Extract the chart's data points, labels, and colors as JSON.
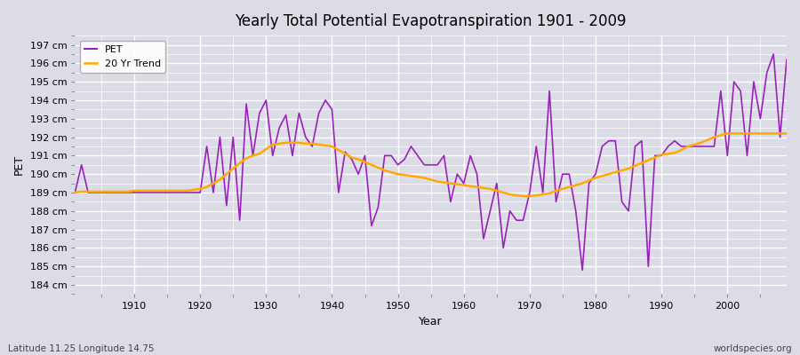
{
  "title": "Yearly Total Potential Evapotranspiration 1901 - 2009",
  "xlabel": "Year",
  "ylabel": "PET",
  "subtitle_left": "Latitude 11.25 Longitude 14.75",
  "subtitle_right": "worldspecies.org",
  "ylim": [
    183.5,
    197.5
  ],
  "yticks": [
    184,
    185,
    186,
    187,
    188,
    189,
    190,
    191,
    192,
    193,
    194,
    195,
    196,
    197
  ],
  "xlim": [
    1901,
    2009
  ],
  "xticks": [
    1910,
    1920,
    1930,
    1940,
    1950,
    1960,
    1970,
    1980,
    1990,
    2000
  ],
  "bg_color": "#dcdce6",
  "grid_color": "#ffffff",
  "pet_color": "#9922bb",
  "trend_color": "#ffaa00",
  "pet_linewidth": 1.2,
  "trend_linewidth": 1.8,
  "years": [
    1901,
    1902,
    1903,
    1904,
    1905,
    1906,
    1907,
    1908,
    1909,
    1910,
    1911,
    1912,
    1913,
    1914,
    1915,
    1916,
    1917,
    1918,
    1919,
    1920,
    1921,
    1922,
    1923,
    1924,
    1925,
    1926,
    1927,
    1928,
    1929,
    1930,
    1931,
    1932,
    1933,
    1934,
    1935,
    1936,
    1937,
    1938,
    1939,
    1940,
    1941,
    1942,
    1943,
    1944,
    1945,
    1946,
    1947,
    1948,
    1949,
    1950,
    1951,
    1952,
    1953,
    1954,
    1955,
    1956,
    1957,
    1958,
    1959,
    1960,
    1961,
    1962,
    1963,
    1964,
    1965,
    1966,
    1967,
    1968,
    1969,
    1970,
    1971,
    1972,
    1973,
    1974,
    1975,
    1976,
    1977,
    1978,
    1979,
    1980,
    1981,
    1982,
    1983,
    1984,
    1985,
    1986,
    1987,
    1988,
    1989,
    1990,
    1991,
    1992,
    1993,
    1994,
    1995,
    1996,
    1997,
    1998,
    1999,
    2000,
    2001,
    2002,
    2003,
    2004,
    2005,
    2006,
    2007,
    2008,
    2009
  ],
  "pet": [
    189.0,
    190.5,
    189.0,
    189.0,
    189.0,
    189.0,
    189.0,
    189.0,
    189.0,
    189.0,
    189.0,
    189.0,
    189.0,
    189.0,
    189.0,
    189.0,
    189.0,
    189.0,
    189.0,
    189.0,
    191.5,
    189.0,
    192.0,
    188.3,
    192.0,
    187.5,
    193.8,
    191.0,
    193.3,
    194.0,
    191.0,
    192.5,
    193.2,
    191.0,
    193.3,
    192.0,
    191.5,
    193.3,
    194.0,
    193.5,
    189.0,
    191.2,
    190.8,
    190.0,
    191.0,
    187.2,
    188.2,
    191.0,
    191.0,
    190.5,
    190.8,
    191.5,
    191.0,
    190.5,
    190.5,
    190.5,
    191.0,
    188.5,
    190.0,
    189.5,
    191.0,
    190.0,
    186.5,
    188.0,
    189.5,
    186.0,
    188.0,
    187.5,
    187.5,
    189.0,
    191.5,
    189.0,
    194.5,
    188.5,
    190.0,
    190.0,
    188.0,
    184.8,
    189.5,
    190.0,
    191.5,
    191.8,
    191.8,
    188.5,
    188.0,
    191.5,
    191.8,
    185.0,
    191.0,
    191.0,
    191.5,
    191.8,
    191.5,
    191.5,
    191.5,
    191.5,
    191.5,
    191.5,
    194.5,
    191.0,
    195.0,
    194.5,
    191.0,
    195.0,
    193.0,
    195.5,
    196.5,
    192.0,
    196.2
  ],
  "trend": [
    189.0,
    189.05,
    189.05,
    189.05,
    189.05,
    189.05,
    189.05,
    189.05,
    189.05,
    189.1,
    189.1,
    189.1,
    189.1,
    189.1,
    189.1,
    189.1,
    189.1,
    189.1,
    189.15,
    189.2,
    189.3,
    189.5,
    189.7,
    190.0,
    190.3,
    190.6,
    190.85,
    191.0,
    191.1,
    191.35,
    191.6,
    191.65,
    191.7,
    191.7,
    191.7,
    191.65,
    191.65,
    191.6,
    191.55,
    191.5,
    191.3,
    191.1,
    190.9,
    190.8,
    190.65,
    190.5,
    190.35,
    190.2,
    190.1,
    190.0,
    189.95,
    189.9,
    189.85,
    189.8,
    189.7,
    189.6,
    189.55,
    189.5,
    189.45,
    189.4,
    189.35,
    189.3,
    189.25,
    189.2,
    189.1,
    189.0,
    188.9,
    188.85,
    188.8,
    188.8,
    188.85,
    188.9,
    188.95,
    189.1,
    189.2,
    189.3,
    189.4,
    189.5,
    189.65,
    189.8,
    189.9,
    190.0,
    190.1,
    190.2,
    190.3,
    190.45,
    190.6,
    190.75,
    190.9,
    191.05,
    191.1,
    191.15,
    191.3,
    191.5,
    191.6,
    191.7,
    191.85,
    192.0,
    192.1,
    192.2,
    192.2,
    192.2,
    192.2,
    192.2,
    192.2,
    192.2,
    192.2,
    192.2,
    192.2
  ]
}
